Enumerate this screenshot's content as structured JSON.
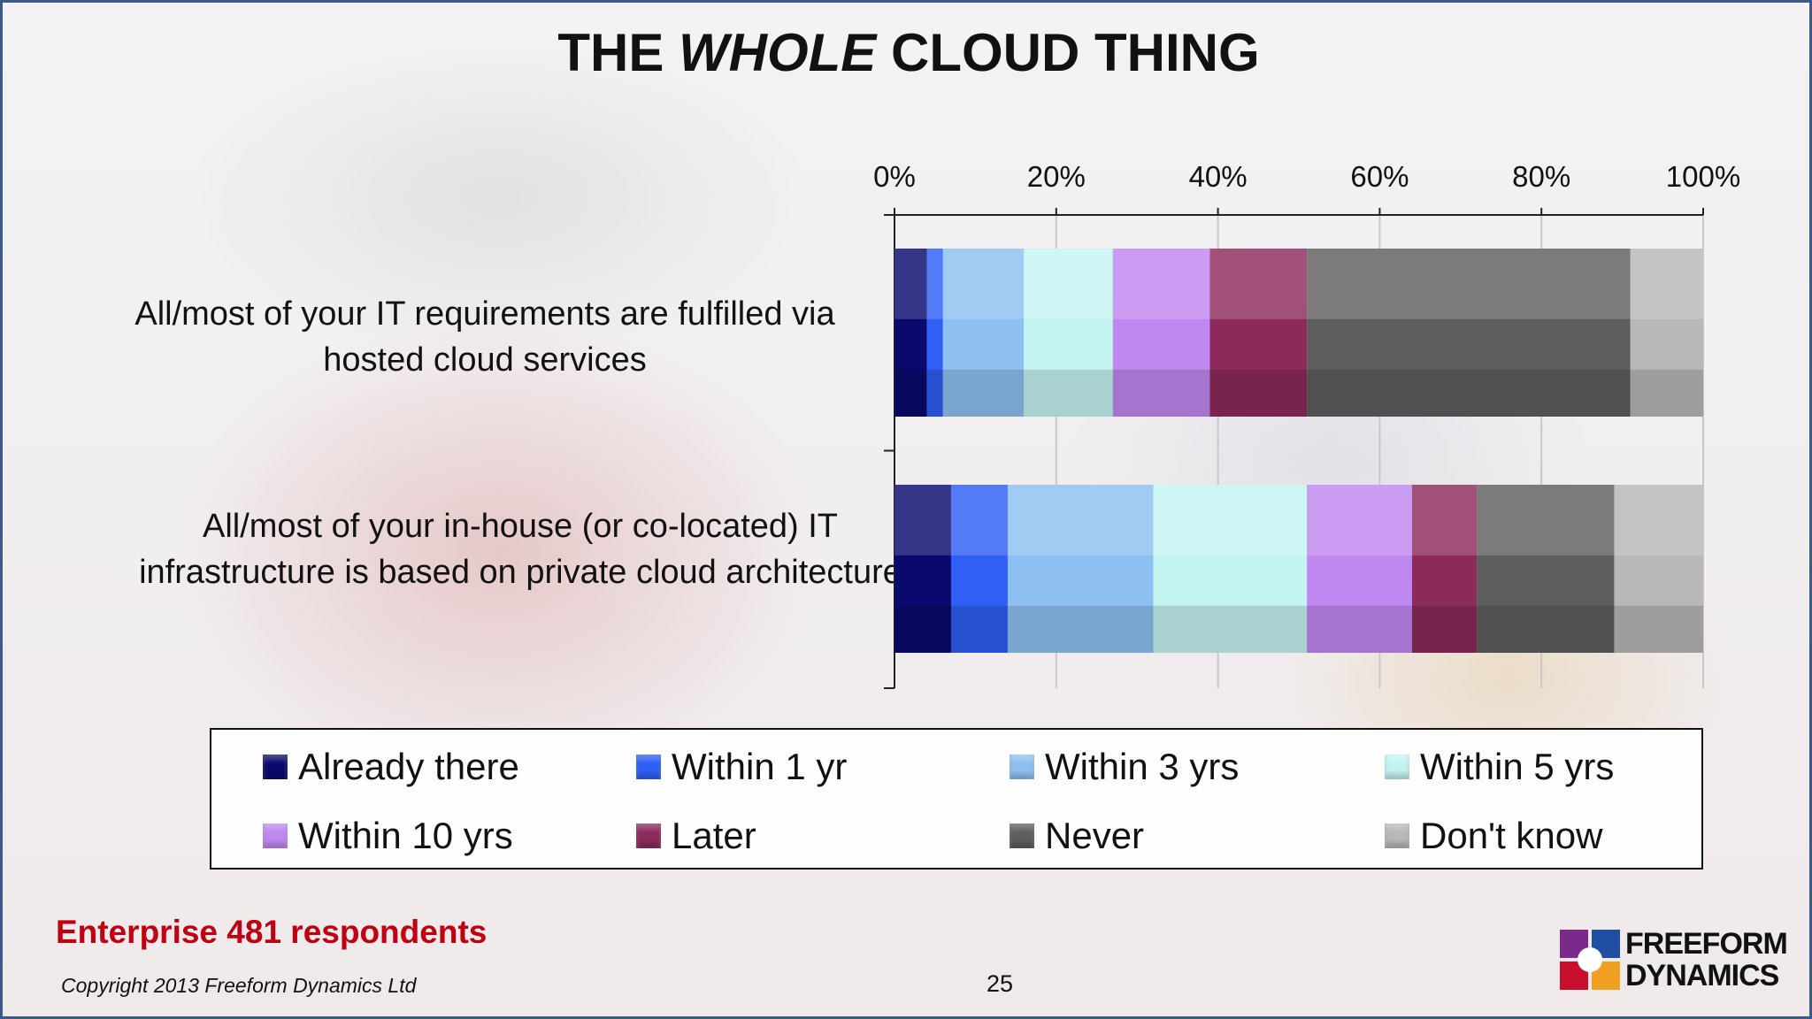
{
  "slide": {
    "title_prefix": "THE ",
    "title_emph": "WHOLE",
    "title_suffix": " CLOUD THING",
    "respondents": "Enterprise 481 respondents",
    "copyright": "Copyright 2013 Freeform Dynamics Ltd",
    "page_number": "25",
    "logo_line1": "FREEFORM",
    "logo_line2": "DYNAMICS"
  },
  "chart_data": {
    "type": "bar",
    "orientation": "horizontal",
    "stacked": "percent",
    "categories": [
      "All/most of your IT requirements are fulfilled via hosted cloud services",
      "All/most of your in-house (or co-located) IT infrastructure is based on private cloud architecture"
    ],
    "xaxis": {
      "ticks": [
        "0%",
        "20%",
        "40%",
        "60%",
        "80%",
        "100%"
      ],
      "position": "top",
      "range": [
        0,
        100
      ]
    },
    "grid": true,
    "legend_position": "bottom",
    "series": [
      {
        "name": "Already there",
        "color": "#0a0a6e",
        "values": [
          4,
          7
        ]
      },
      {
        "name": "Within 1 yr",
        "color": "#2f5ff5",
        "values": [
          2,
          7
        ]
      },
      {
        "name": "Within 3 yrs",
        "color": "#8ec0f2",
        "values": [
          10,
          18
        ]
      },
      {
        "name": "Within 5 yrs",
        "color": "#c4f4f2",
        "values": [
          11,
          19
        ]
      },
      {
        "name": "Within 10 yrs",
        "color": "#bf88f0",
        "values": [
          12,
          13
        ]
      },
      {
        "name": "Later",
        "color": "#8c2a5c",
        "values": [
          12,
          8
        ]
      },
      {
        "name": "Never",
        "color": "#5e5e5e",
        "values": [
          40,
          17
        ]
      },
      {
        "name": "Don't know",
        "color": "#b8b8b8",
        "values": [
          9,
          11
        ]
      }
    ]
  }
}
